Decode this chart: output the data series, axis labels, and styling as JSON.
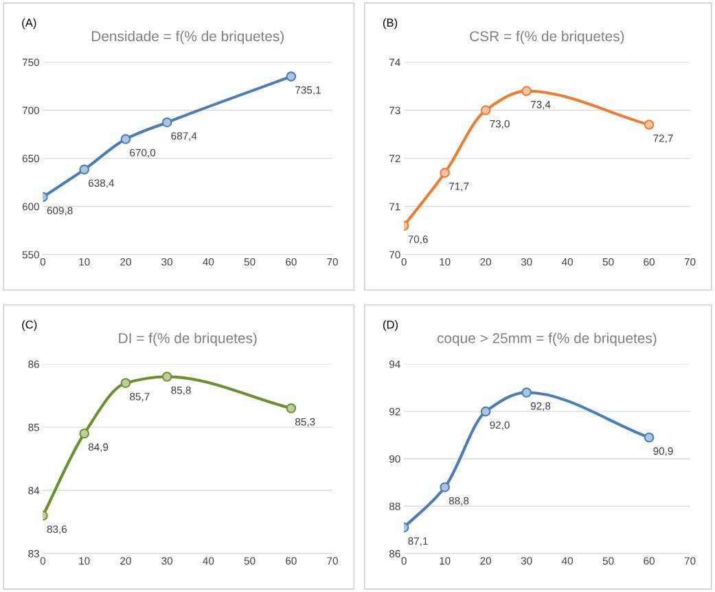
{
  "chart_data": [
    {
      "type": "line",
      "title": "Densidade = f(% de briquetes)",
      "annotations": [
        "(A)"
      ],
      "x": [
        0,
        10,
        20,
        30,
        60
      ],
      "xlim": [
        0,
        70
      ],
      "xticks": [
        0,
        10,
        20,
        30,
        40,
        50,
        60,
        70
      ],
      "ylim": [
        550,
        750
      ],
      "yticks": [
        550,
        600,
        650,
        700,
        750
      ],
      "grid": "y",
      "marker": "circle",
      "series": [
        {
          "color": "#4a7ebb",
          "values": [
            609.8,
            638.4,
            670.0,
            687.4,
            735.1
          ],
          "value_labels": [
            "609,8",
            "638,4",
            "670,0",
            "687,4",
            "735,1"
          ]
        }
      ]
    },
    {
      "type": "line",
      "title": "CSR = f(% de briquetes)",
      "annotations": [
        "(B)"
      ],
      "x": [
        0,
        10,
        20,
        30,
        60
      ],
      "xlim": [
        0,
        70
      ],
      "xticks": [
        0,
        10,
        20,
        30,
        40,
        50,
        60,
        70
      ],
      "ylim": [
        70,
        74
      ],
      "yticks": [
        70,
        71,
        72,
        73,
        74
      ],
      "grid": "y",
      "marker": "circle",
      "series": [
        {
          "color": "#ed7d31",
          "values": [
            70.6,
            71.7,
            73.0,
            73.4,
            72.7
          ],
          "value_labels": [
            "70,6",
            "71,7",
            "73,0",
            "73,4",
            "72,7"
          ]
        }
      ]
    },
    {
      "type": "line",
      "title": "DI = f(% de briquetes)",
      "annotations": [
        "(C)"
      ],
      "x": [
        0,
        10,
        20,
        30,
        60
      ],
      "xlim": [
        0,
        70
      ],
      "xticks": [
        0,
        10,
        20,
        30,
        40,
        50,
        60,
        70
      ],
      "ylim": [
        83,
        86
      ],
      "yticks": [
        83,
        84,
        85,
        86
      ],
      "grid": "y",
      "marker": "circle",
      "series": [
        {
          "color": "#6e8f2e",
          "values": [
            83.6,
            84.9,
            85.7,
            85.8,
            85.3
          ],
          "value_labels": [
            "83,6",
            "84,9",
            "85,7",
            "85,8",
            "85,3"
          ]
        }
      ]
    },
    {
      "type": "line",
      "title": "coque > 25mm = f(% de briquetes)",
      "annotations": [
        "(D)"
      ],
      "x": [
        0,
        10,
        20,
        30,
        60
      ],
      "xlim": [
        0,
        70
      ],
      "xticks": [
        0,
        10,
        20,
        30,
        40,
        50,
        60,
        70
      ],
      "ylim": [
        86,
        94
      ],
      "yticks": [
        86,
        88,
        90,
        92,
        94
      ],
      "grid": "y",
      "marker": "circle",
      "series": [
        {
          "color": "#4a7ebb",
          "values": [
            87.1,
            88.8,
            92.0,
            92.8,
            90.9
          ],
          "value_labels": [
            "87,1",
            "88,8",
            "92,0",
            "92,8",
            "90,9"
          ]
        }
      ]
    }
  ]
}
